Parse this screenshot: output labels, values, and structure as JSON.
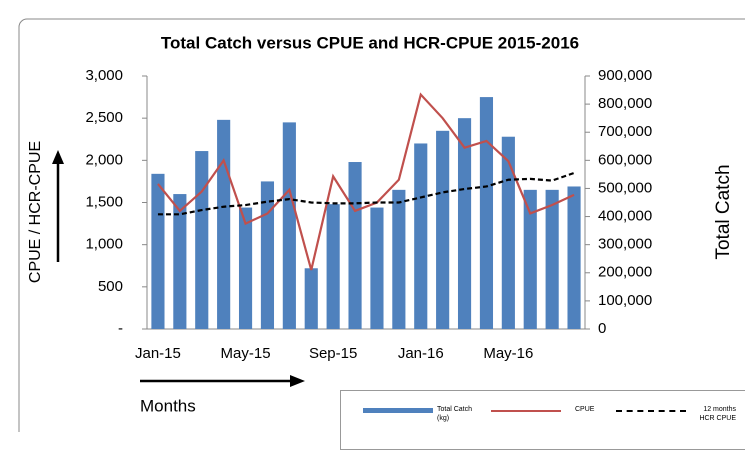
{
  "chart_data": {
    "type": "bar-line",
    "title": "Total Catch versus CPUE and HCR-CPUE 2015-2016",
    "y_label": "CPUE / HCR-CPUE",
    "y2_label": "Total Catch",
    "x_label": "Months",
    "categories": [
      "Jan-15",
      null,
      null,
      null,
      "May-15",
      null,
      null,
      null,
      "Sep-15",
      null,
      null,
      null,
      "Jan-16",
      null,
      null,
      null,
      "May-16",
      null,
      null,
      null
    ],
    "ylim": [
      0,
      3000
    ],
    "yticks": [
      {
        "value": 0,
        "label": "-"
      },
      500,
      {
        "value": 1000,
        "label": "1,000"
      },
      {
        "value": 1500,
        "label": "1,500"
      },
      {
        "value": 2000,
        "label": "2,000"
      },
      {
        "value": 2500,
        "label": "2,500"
      },
      {
        "value": 3000,
        "label": "3,000"
      }
    ],
    "y2lim": [
      0,
      900000
    ],
    "y2ticks": [
      0,
      {
        "value": 100000,
        "label": "100,000"
      },
      {
        "value": 200000,
        "label": "200,000"
      },
      {
        "value": 300000,
        "label": "300,000"
      },
      {
        "value": 400000,
        "label": "400,000"
      },
      {
        "value": 500000,
        "label": "500,000"
      },
      {
        "value": 600000,
        "label": "600,000"
      },
      {
        "value": 700000,
        "label": "700,000"
      },
      {
        "value": 800000,
        "label": "800,000"
      },
      {
        "value": 900000,
        "label": "900,000"
      }
    ],
    "series": [
      {
        "name": "Total Catch (kg)",
        "kind": "bar",
        "axis": "y2",
        "color": "#4f81bd",
        "values": [
          552000,
          480000,
          633000,
          744000,
          432000,
          525000,
          735000,
          216000,
          444000,
          594000,
          432000,
          495000,
          660000,
          705000,
          750000,
          825000,
          684000,
          495000,
          495000,
          507000
        ]
      },
      {
        "name": "CPUE",
        "kind": "line",
        "color": "#c0504d",
        "values": [
          1720,
          1400,
          1630,
          2000,
          1250,
          1370,
          1650,
          700,
          1810,
          1400,
          1500,
          1770,
          2780,
          2500,
          2150,
          2230,
          1990,
          1370,
          1470,
          1590
        ]
      },
      {
        "name": "12 months HCR CPUE",
        "kind": "dashed-line",
        "color": "#000000",
        "values": [
          1360,
          1360,
          1410,
          1450,
          1470,
          1510,
          1540,
          1500,
          1490,
          1490,
          1500,
          1500,
          1560,
          1620,
          1660,
          1690,
          1770,
          1780,
          1760,
          1850
        ]
      }
    ]
  }
}
